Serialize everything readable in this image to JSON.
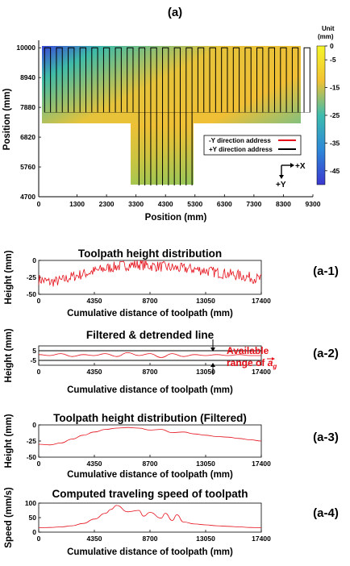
{
  "figure_title": "(a)",
  "colorbar": {
    "unit_line1": "Unit",
    "unit_line2": "(mm)",
    "ticks": [
      "0",
      "-5",
      "-15",
      "-25",
      "-35",
      "-45"
    ],
    "tick_values": [
      0,
      -5,
      -15,
      -25,
      -35,
      -45
    ],
    "range": [
      -50,
      0
    ],
    "colors": [
      "#f5f52a",
      "#f2c232",
      "#3dbcad",
      "#2e88d8",
      "#3a38cf"
    ]
  },
  "legend": {
    "neg_y": "-Y direction address",
    "pos_y": "+Y direction address",
    "neg_color": "#e5101a",
    "pos_color": "#000000"
  },
  "direction": {
    "x": "+X",
    "y": "+Y"
  },
  "tags": [
    "(a-1)",
    "(a-2)",
    "(a-3)",
    "(a-4)"
  ],
  "annotation": {
    "line1": "Available",
    "line2_prefix": "range of",
    "symbol": "a",
    "subscript": "g",
    "color": "#e5101a"
  },
  "chart_data": [
    {
      "type": "heatmap",
      "title": "",
      "xlabel": "Position (mm)",
      "ylabel": "Position (mm)",
      "xticks": [
        "0",
        "1300",
        "2300",
        "3300",
        "4300",
        "5300",
        "6300",
        "7300",
        "8300",
        "9300"
      ],
      "xtick_values": [
        0,
        1300,
        2300,
        3300,
        4300,
        5300,
        6300,
        7300,
        8300,
        9300
      ],
      "yticks": [
        "10000",
        "8940",
        "7880",
        "6820",
        "5760",
        "4700"
      ],
      "ytick_values": [
        10000,
        8940,
        7880,
        6820,
        5760,
        4700
      ],
      "xlim": [
        0,
        9300
      ],
      "ylim": [
        4700,
        10380
      ],
      "region_upper": {
        "x": [
          200,
          9300
        ],
        "y": [
          7350,
          10380
        ]
      },
      "region_lower": {
        "x": [
          3300,
          5300
        ],
        "y": [
          5050,
          7350
        ]
      },
      "passes_upper_left": [
        300,
        700,
        1100,
        1500,
        1900,
        2300,
        2700,
        3100
      ],
      "passes_middle": [
        3500,
        3900,
        4300,
        4700,
        5100
      ],
      "passes_upper_right": [
        5500,
        5900,
        6300,
        6700,
        7100,
        7500,
        7900,
        8300,
        8700,
        9100
      ],
      "pass_half_width": 100,
      "top_y": 10000,
      "bottom_y_upper": 7700,
      "bottom_y_middle": 5100,
      "series_colors": {
        "neg_y": "#e5101a",
        "pos_y": "#000000"
      }
    },
    {
      "type": "line",
      "title": "Toolpath height distribution",
      "xlabel": "Cumulative distance of toolpath (mm)",
      "ylabel": "Height (mm)",
      "xticks": [
        "0",
        "4350",
        "8700",
        "13050",
        "17400"
      ],
      "xtick_values": [
        0,
        4350,
        8700,
        13050,
        17400
      ],
      "yticks": [
        "0",
        "-25",
        "-50"
      ],
      "ytick_values": [
        0,
        -25,
        -50
      ],
      "xlim": [
        0,
        17400
      ],
      "ylim": [
        -50,
        0
      ],
      "noise": "high",
      "x": [
        0,
        870,
        1740,
        2610,
        3480,
        4350,
        5220,
        6090,
        6960,
        7830,
        8700,
        9570,
        10440,
        11310,
        12180,
        13050,
        13920,
        14790,
        15660,
        16530,
        17400
      ],
      "y": [
        -28,
        -32,
        -30,
        -24,
        -20,
        -16,
        -12,
        -9,
        -7,
        -6,
        -8,
        -9,
        -11,
        -12,
        -13,
        -15,
        -18,
        -20,
        -22,
        -25,
        -28
      ],
      "color": "#e5101a"
    },
    {
      "type": "line",
      "title": "Filtered & detrended line",
      "xlabel": "Cumulative distance of toolpath (mm)",
      "ylabel": "Height (mm)",
      "xticks": [
        "0",
        "4350",
        "8700",
        "13050",
        "17400"
      ],
      "xtick_values": [
        0,
        4350,
        8700,
        13050,
        17400
      ],
      "yticks": [
        "5",
        "-5"
      ],
      "ytick_values": [
        5,
        -5
      ],
      "xlim": [
        0,
        17400
      ],
      "ylim": [
        -10,
        10
      ],
      "bounds": [
        5,
        -5
      ],
      "noise": "none",
      "x": [
        0,
        870,
        1740,
        2610,
        3480,
        4350,
        5220,
        6090,
        6960,
        7830,
        8700,
        9570,
        10440,
        11310,
        12180,
        13050,
        13920,
        14790,
        15660,
        16530,
        17400
      ],
      "y": [
        1,
        0,
        2,
        -1,
        1,
        0,
        2,
        -1,
        3,
        0,
        2,
        -2,
        2,
        -1,
        1,
        0,
        1,
        0,
        1,
        0,
        0
      ],
      "color": "#e5101a"
    },
    {
      "type": "line",
      "title": "Toolpath height distribution (Filtered)",
      "xlabel": "Cumulative distance of toolpath (mm)",
      "ylabel": "Height (mm)",
      "xticks": [
        "0",
        "4350",
        "8700",
        "13050",
        "17400"
      ],
      "xtick_values": [
        0,
        4350,
        8700,
        13050,
        17400
      ],
      "yticks": [
        "0",
        "-25",
        "-50"
      ],
      "ytick_values": [
        0,
        -25,
        -50
      ],
      "xlim": [
        0,
        17400
      ],
      "ylim": [
        -50,
        0
      ],
      "noise": "none",
      "x": [
        0,
        870,
        1740,
        2610,
        3480,
        4350,
        5220,
        6090,
        6960,
        7830,
        8700,
        9570,
        10440,
        11310,
        12180,
        13050,
        13920,
        14790,
        15660,
        16530,
        17400
      ],
      "y": [
        -30,
        -31,
        -28,
        -22,
        -16,
        -11,
        -7,
        -5,
        -4,
        -5,
        -8,
        -7,
        -12,
        -11,
        -14,
        -16,
        -18,
        -19,
        -21,
        -23,
        -25
      ],
      "color": "#e5101a"
    },
    {
      "type": "line",
      "title": "Computed traveling speed of toolpath",
      "xlabel": "Cumulative distance of toolpath (mm)",
      "ylabel": "Speed (mm/s)",
      "xticks": [
        "0",
        "4350",
        "8700",
        "13050",
        "17400"
      ],
      "xtick_values": [
        0,
        4350,
        8700,
        13050,
        17400
      ],
      "yticks": [
        "100",
        "50",
        "0"
      ],
      "ytick_values": [
        100,
        50,
        0
      ],
      "xlim": [
        0,
        17400
      ],
      "ylim": [
        0,
        100
      ],
      "noise": "none",
      "x": [
        0,
        870,
        1740,
        2610,
        3480,
        4350,
        5220,
        5650,
        6090,
        6960,
        7830,
        8200,
        8700,
        9570,
        9900,
        10440,
        10800,
        11310,
        12180,
        13050,
        13920,
        14790,
        15660,
        16530,
        17400
      ],
      "y": [
        15,
        16,
        18,
        22,
        30,
        45,
        65,
        78,
        92,
        70,
        75,
        55,
        68,
        48,
        65,
        40,
        60,
        35,
        28,
        25,
        22,
        20,
        18,
        16,
        15
      ],
      "color": "#e5101a"
    }
  ]
}
